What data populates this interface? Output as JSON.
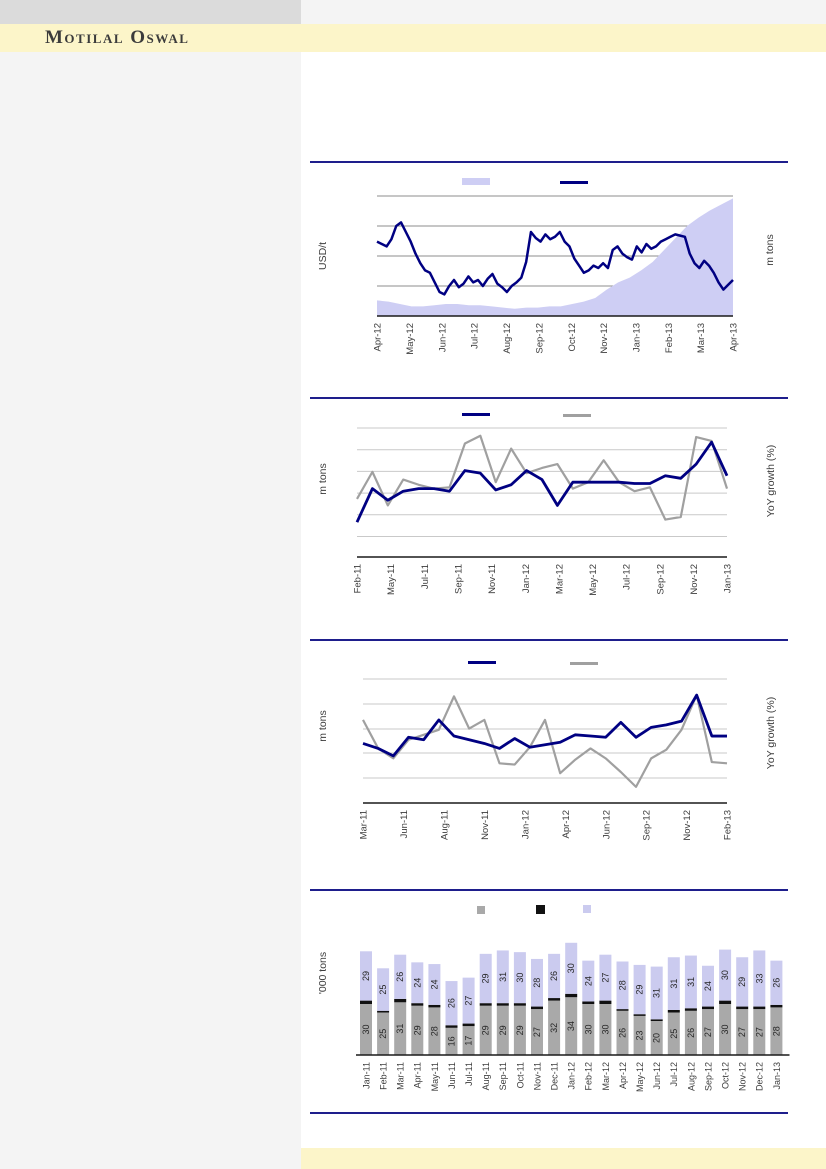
{
  "header": {
    "brand": "Motilal Oswal"
  },
  "colors": {
    "accent_navy": "#000082",
    "divider_navy": "#1e1e8c",
    "band_yellow": "#fcf5c9",
    "left_panel_gray": "#f4f4f4",
    "topleft_box_gray": "#dbdbdb",
    "area_lavender": "#cecef4",
    "line_gray": "#a0a0a0",
    "grid_dark": "#8c8c8c",
    "grid_light": "#c9c9c9",
    "bar_gray": "#a9a9a9",
    "bar_black": "#111111",
    "bar_lavender": "#cbcbef",
    "axis_black": "#1a1a1a",
    "tick_text": "#3d3d3d"
  },
  "chart_data": [
    {
      "id": "chart-1",
      "type": "area",
      "subtype": "area-plus-line combo, dual axis",
      "ylabel_left": "USD/t",
      "ylabel_right": "m tons",
      "x_labels": [
        "Apr-12",
        "May-12",
        "Jun-12",
        "Jul-12",
        "Aug-12",
        "Sep-12",
        "Oct-12",
        "Nov-12",
        "Jan-13",
        "Feb-13",
        "Mar-13",
        "Apr-13"
      ],
      "y_ticks": [],
      "legend_swatches": [
        "lavender-area",
        "navy-line"
      ],
      "units": "relative 0-100 of plot height (no numeric axis labels visible)",
      "series": [
        {
          "name": "area-series",
          "render": "area",
          "color": "#cecef4",
          "values": [
            13,
            12,
            10,
            8,
            8,
            9,
            10,
            10,
            9,
            9,
            8,
            7,
            6,
            7,
            7,
            8,
            8,
            10,
            12,
            15,
            22,
            28,
            32,
            38,
            45,
            55,
            65,
            75,
            82,
            88,
            93,
            98
          ]
        },
        {
          "name": "line-series",
          "render": "line",
          "color": "#000082",
          "values": [
            62,
            60,
            58,
            64,
            75,
            78,
            70,
            62,
            52,
            44,
            38,
            36,
            28,
            20,
            18,
            25,
            30,
            24,
            27,
            33,
            28,
            30,
            25,
            31,
            35,
            27,
            24,
            20,
            25,
            28,
            32,
            45,
            70,
            65,
            62,
            68,
            64,
            66,
            70,
            62,
            58,
            48,
            42,
            36,
            38,
            42,
            40,
            44,
            40,
            55,
            58,
            52,
            49,
            47,
            58,
            53,
            60,
            56,
            58,
            62,
            64,
            66,
            68,
            67,
            66,
            52,
            44,
            40,
            46,
            42,
            36,
            28,
            22,
            26,
            30
          ]
        }
      ]
    },
    {
      "id": "chart-2",
      "type": "line",
      "ylabel_left": "m tons",
      "ylabel_right": "YoY growth (%)",
      "x_labels": [
        "Feb-11",
        "May-11",
        "Jul-11",
        "Sep-11",
        "Nov-11",
        "Jan-12",
        "Mar-12",
        "May-12",
        "Jul-12",
        "Sep-12",
        "Nov-12",
        "Jan-13"
      ],
      "y_ticks": [],
      "legend_swatches": [
        "navy-line",
        "gray-line"
      ],
      "units": "relative 0-100 of plot height (no numeric axis labels visible)",
      "series": [
        {
          "name": "navy-series",
          "render": "line",
          "color": "#000082",
          "values": [
            27,
            53,
            44,
            51,
            53,
            53,
            51,
            67,
            65,
            52,
            56,
            67,
            60,
            40,
            58,
            58,
            58,
            58,
            57,
            57,
            63,
            61,
            72,
            89,
            63
          ]
        },
        {
          "name": "gray-series",
          "render": "line",
          "color": "#a0a0a0",
          "values": [
            45,
            66,
            40,
            60,
            56,
            53,
            54,
            88,
            94,
            58,
            84,
            65,
            69,
            72,
            53,
            58,
            75,
            58,
            51,
            54,
            29,
            31,
            93,
            90,
            53
          ]
        }
      ]
    },
    {
      "id": "chart-3",
      "type": "line",
      "ylabel_left": "m tons",
      "ylabel_right": "YoY growth (%)",
      "x_labels": [
        "Mar-11",
        "Jun-11",
        "Aug-11",
        "Nov-11",
        "Jan-12",
        "Apr-12",
        "Jun-12",
        "Sep-12",
        "Nov-12",
        "Feb-13"
      ],
      "y_ticks": [],
      "legend_swatches": [
        "navy-line",
        "gray-line"
      ],
      "units": "relative 0-100 of plot height (no numeric axis labels visible)",
      "series": [
        {
          "name": "navy-series",
          "render": "line",
          "color": "#000082",
          "values": [
            48,
            44,
            38,
            53,
            51,
            67,
            54,
            51,
            48,
            44,
            52,
            45,
            47,
            49,
            55,
            54,
            53,
            65,
            53,
            61,
            63,
            66,
            87,
            54,
            54
          ]
        },
        {
          "name": "gray-series",
          "render": "line",
          "color": "#a0a0a0",
          "values": [
            67,
            44,
            36,
            51,
            55,
            59,
            86,
            60,
            67,
            32,
            31,
            45,
            67,
            24,
            35,
            44,
            36,
            25,
            13,
            36,
            43,
            59,
            87,
            33,
            32
          ]
        }
      ]
    },
    {
      "id": "chart-4",
      "type": "bar",
      "stacked": true,
      "ylabel_left": "'000 tons",
      "categories": [
        "Jan-11",
        "Feb-11",
        "Mar-11",
        "Apr-11",
        "May-11",
        "Jun-11",
        "Jul-11",
        "Aug-11",
        "Sep-11",
        "Oct-11",
        "Nov-11",
        "Dec-11",
        "Jan-12",
        "Feb-12",
        "Mar-12",
        "Apr-12",
        "May-12",
        "Jun-12",
        "Jul-12",
        "Aug-12",
        "Sep-12",
        "Oct-12",
        "Nov-12",
        "Dec-12",
        "Jan-13"
      ],
      "y_ticks": [],
      "legend_swatches": [
        "gray-square",
        "black-square",
        "lavender-square"
      ],
      "units": "'000 tons",
      "series": [
        {
          "name": "bottom-gray",
          "color": "#a9a9a9",
          "labels_visible": true,
          "values": [
            30,
            25,
            31,
            29,
            28,
            16,
            17,
            29,
            29,
            29,
            27,
            32,
            34,
            30,
            30,
            26,
            23,
            20,
            25,
            26,
            27,
            30,
            27,
            27,
            28
          ]
        },
        {
          "name": "middle-black",
          "color": "#111111",
          "labels_visible": false,
          "values_estimated": [
            2,
            1,
            2,
            1.5,
            1.5,
            1.5,
            1.5,
            1.5,
            1.5,
            1.5,
            1.5,
            1.5,
            2,
            1.5,
            2,
            1,
            1,
            1,
            1.5,
            1.5,
            1.5,
            2,
            1.5,
            1.5,
            1.5
          ]
        },
        {
          "name": "top-lavender",
          "color": "#cbcbef",
          "labels_visible": true,
          "values": [
            29,
            25,
            26,
            24,
            24,
            26,
            27,
            29,
            31,
            30,
            28,
            26,
            30,
            24,
            27,
            28,
            29,
            31,
            31,
            31,
            24,
            30,
            29,
            33,
            26
          ]
        }
      ]
    }
  ]
}
